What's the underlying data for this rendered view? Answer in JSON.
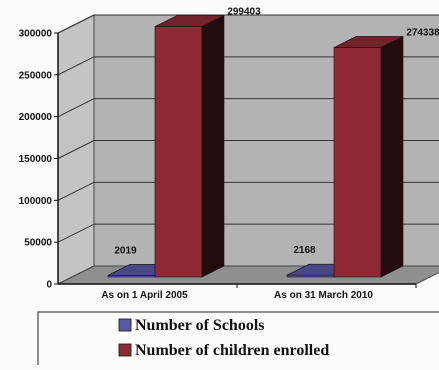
{
  "chart_data": {
    "type": "bar",
    "categories": [
      "As on 1 April 2005",
      "As on 31 March 2010"
    ],
    "series": [
      {
        "name": "Number of Schools",
        "values": [
          2019,
          2168
        ],
        "color": "#5a5aa6"
      },
      {
        "name": "Number of children enrolled",
        "values": [
          299403,
          274338
        ],
        "color": "#8e2a33"
      }
    ],
    "data_labels": [
      "2019",
      "299403",
      "2168",
      "274338"
    ],
    "yticks": [
      "0",
      "50000",
      "100000",
      "150000",
      "200000",
      "250000",
      "300000"
    ],
    "ylim": [
      0,
      300000
    ],
    "three_d": true,
    "grid": true,
    "legend": "bottom",
    "colors": {
      "wall": "#b3b3b3",
      "floor": "#8f8f8f",
      "background": "#fcfcfa"
    }
  }
}
